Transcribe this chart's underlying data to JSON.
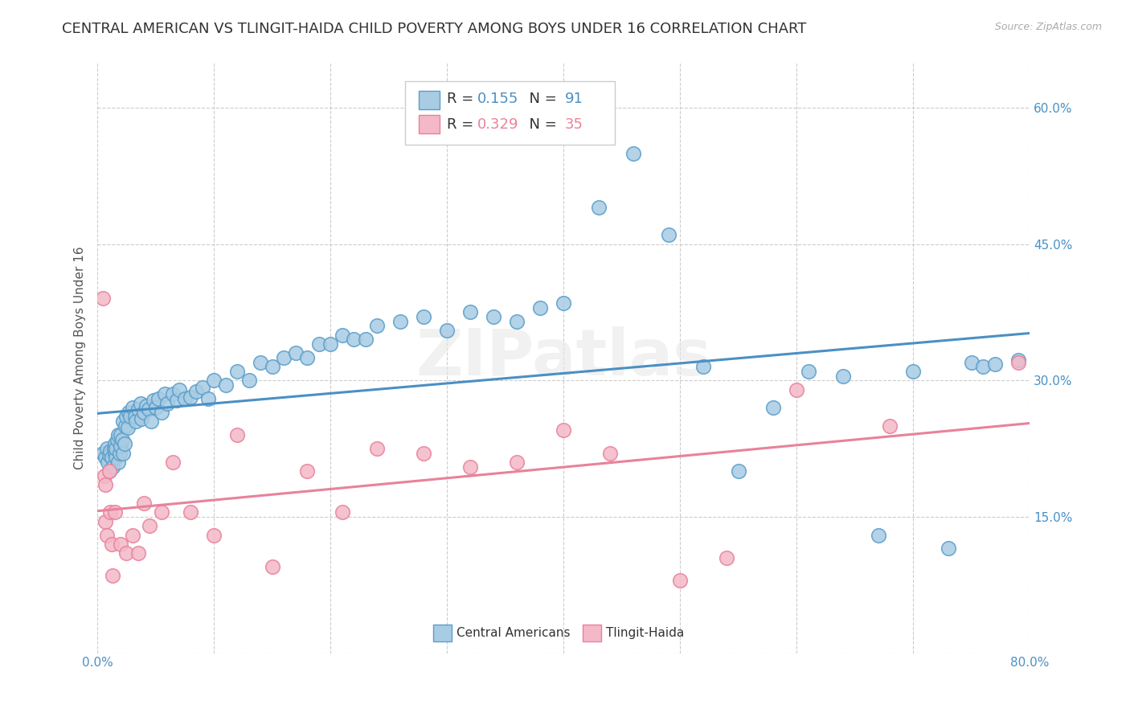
{
  "title": "CENTRAL AMERICAN VS TLINGIT-HAIDA CHILD POVERTY AMONG BOYS UNDER 16 CORRELATION CHART",
  "source": "Source: ZipAtlas.com",
  "ylabel": "Child Poverty Among Boys Under 16",
  "xlim": [
    0.0,
    0.8
  ],
  "ylim": [
    0.0,
    0.65
  ],
  "xticks": [
    0.0,
    0.1,
    0.2,
    0.3,
    0.4,
    0.5,
    0.6,
    0.7,
    0.8
  ],
  "yticks_right": [
    0.0,
    0.15,
    0.3,
    0.45,
    0.6
  ],
  "yticklabels_right": [
    "",
    "15.0%",
    "30.0%",
    "45.0%",
    "60.0%"
  ],
  "blue_color": "#a8cce4",
  "pink_color": "#f4b8c8",
  "blue_edge_color": "#5b9ec9",
  "pink_edge_color": "#e8829a",
  "blue_line_color": "#4a90c4",
  "pink_line_color": "#e8829a",
  "legend_R_blue": "0.155",
  "legend_N_blue": "91",
  "legend_R_pink": "0.329",
  "legend_N_pink": "35",
  "legend_label_blue": "Central Americans",
  "legend_label_pink": "Tlingit-Haida",
  "watermark": "ZIPatlas",
  "title_fontsize": 13,
  "axis_label_fontsize": 11,
  "tick_fontsize": 11,
  "blue_x": [
    0.005,
    0.007,
    0.008,
    0.009,
    0.01,
    0.01,
    0.011,
    0.012,
    0.013,
    0.014,
    0.015,
    0.015,
    0.016,
    0.016,
    0.017,
    0.018,
    0.018,
    0.019,
    0.02,
    0.02,
    0.021,
    0.022,
    0.022,
    0.023,
    0.024,
    0.025,
    0.026,
    0.027,
    0.028,
    0.03,
    0.032,
    0.033,
    0.035,
    0.037,
    0.038,
    0.04,
    0.042,
    0.044,
    0.046,
    0.048,
    0.05,
    0.052,
    0.055,
    0.058,
    0.06,
    0.065,
    0.068,
    0.07,
    0.075,
    0.08,
    0.085,
    0.09,
    0.095,
    0.1,
    0.11,
    0.12,
    0.13,
    0.14,
    0.15,
    0.16,
    0.17,
    0.18,
    0.19,
    0.2,
    0.21,
    0.22,
    0.23,
    0.24,
    0.26,
    0.28,
    0.3,
    0.32,
    0.34,
    0.36,
    0.38,
    0.4,
    0.43,
    0.46,
    0.49,
    0.52,
    0.55,
    0.58,
    0.61,
    0.64,
    0.67,
    0.7,
    0.73,
    0.75,
    0.76,
    0.77,
    0.79
  ],
  "blue_y": [
    0.22,
    0.215,
    0.225,
    0.21,
    0.2,
    0.218,
    0.222,
    0.215,
    0.205,
    0.225,
    0.23,
    0.22,
    0.215,
    0.225,
    0.235,
    0.21,
    0.24,
    0.22,
    0.228,
    0.24,
    0.235,
    0.22,
    0.255,
    0.23,
    0.25,
    0.26,
    0.248,
    0.265,
    0.26,
    0.27,
    0.26,
    0.255,
    0.268,
    0.275,
    0.258,
    0.265,
    0.272,
    0.268,
    0.255,
    0.278,
    0.27,
    0.28,
    0.265,
    0.285,
    0.275,
    0.285,
    0.278,
    0.29,
    0.28,
    0.282,
    0.288,
    0.292,
    0.28,
    0.3,
    0.295,
    0.31,
    0.3,
    0.32,
    0.315,
    0.325,
    0.33,
    0.325,
    0.34,
    0.34,
    0.35,
    0.345,
    0.345,
    0.36,
    0.365,
    0.37,
    0.355,
    0.375,
    0.37,
    0.365,
    0.38,
    0.385,
    0.49,
    0.55,
    0.46,
    0.315,
    0.2,
    0.27,
    0.31,
    0.305,
    0.13,
    0.31,
    0.115,
    0.32,
    0.315,
    0.318,
    0.322
  ],
  "pink_x": [
    0.005,
    0.006,
    0.007,
    0.007,
    0.008,
    0.01,
    0.011,
    0.012,
    0.013,
    0.015,
    0.02,
    0.025,
    0.03,
    0.035,
    0.04,
    0.045,
    0.055,
    0.065,
    0.08,
    0.1,
    0.12,
    0.15,
    0.18,
    0.21,
    0.24,
    0.28,
    0.32,
    0.36,
    0.4,
    0.44,
    0.5,
    0.54,
    0.6,
    0.68,
    0.79
  ],
  "pink_y": [
    0.39,
    0.195,
    0.185,
    0.145,
    0.13,
    0.2,
    0.155,
    0.12,
    0.085,
    0.155,
    0.12,
    0.11,
    0.13,
    0.11,
    0.165,
    0.14,
    0.155,
    0.21,
    0.155,
    0.13,
    0.24,
    0.095,
    0.2,
    0.155,
    0.225,
    0.22,
    0.205,
    0.21,
    0.245,
    0.22,
    0.08,
    0.105,
    0.29,
    0.25,
    0.32
  ]
}
